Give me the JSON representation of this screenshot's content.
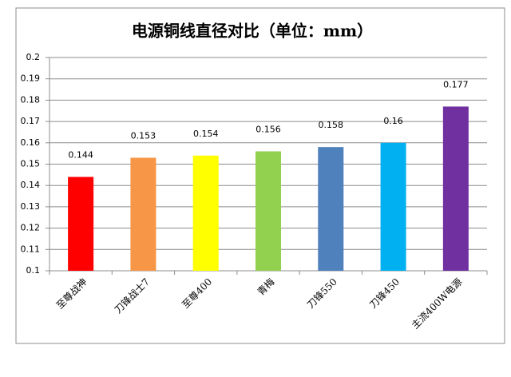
{
  "chart_data": {
    "type": "bar",
    "title": "电源铜线直径对比（单位：mm）",
    "categories": [
      "至尊战神",
      "刀锋战士7",
      "至尊400",
      "青梅",
      "刀锋550",
      "刀锋450",
      "主流400W电源"
    ],
    "values": [
      0.144,
      0.153,
      0.154,
      0.156,
      0.158,
      0.16,
      0.177
    ],
    "colors": [
      "#ff0000",
      "#f79646",
      "#ffff00",
      "#92d050",
      "#4f81bd",
      "#00b0f0",
      "#7030a0"
    ],
    "ylim": [
      0.1,
      0.2
    ],
    "yticks": [
      0.1,
      0.11,
      0.12,
      0.13,
      0.14,
      0.15,
      0.16,
      0.17,
      0.18,
      0.19,
      0.2
    ],
    "grid": true
  }
}
